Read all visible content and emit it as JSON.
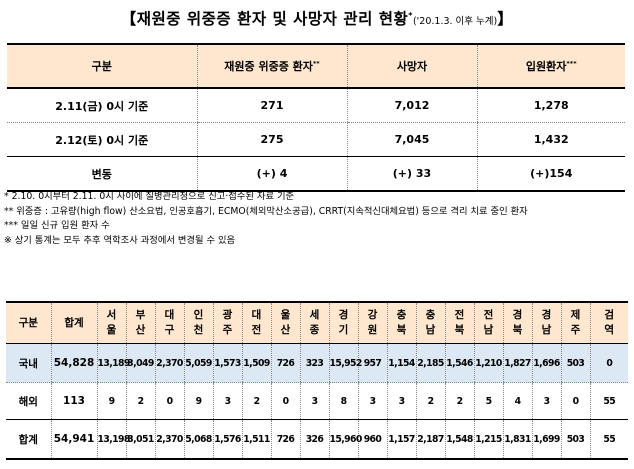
{
  "title": {
    "main": "【재원중 위중증 환자 및 사망자 관리 현황",
    "sup": "*",
    "sub": "('20.1.3. 이후 누계)",
    "close": "】"
  },
  "summary_table": {
    "headers": {
      "category": "구분",
      "critical": "재원중 위중증 환자",
      "critical_sup": "**",
      "deaths": "사망자",
      "hospitalized": "입원환자",
      "hospitalized_sup": "***"
    },
    "rows": [
      {
        "label": "2.11(금) 0시 기준",
        "critical": "271",
        "deaths": "7,012",
        "hospitalized": "1,278"
      },
      {
        "label": "2.12(토) 0시 기준",
        "critical": "275",
        "deaths": "7,045",
        "hospitalized": "1,432"
      },
      {
        "label": "변동",
        "critical": "(+) 4",
        "deaths": "(+) 33",
        "hospitalized": "(+)154"
      }
    ]
  },
  "notes": [
    "* 2.10. 0시부터 2.11. 0시 사이에 질병관리청으로 신고·접수된 자료 기준",
    "** 위중증 : 고유량(high flow) 산소요법, 인공호흡기, ECMO(체외막산소공급), CRRT(지속적신대체요법) 등으로 격리 치료 중인 환자",
    "*** 일일 신규 입원 환자 수",
    "※ 상기 통계는 모두 추후 역학조사 과정에서 변경될 수 있음"
  ],
  "region_table": {
    "headers": [
      "구분",
      "합계",
      "서\n울",
      "부\n산",
      "대\n구",
      "인\n천",
      "광\n주",
      "대\n전",
      "울\n산",
      "세\n종",
      "경\n기",
      "강\n원",
      "충\n북",
      "충\n남",
      "전\n북",
      "전\n남",
      "경\n북",
      "경\n남",
      "제\n주",
      "검\n역"
    ],
    "rows": [
      {
        "label": "국내",
        "values": [
          "54,828",
          "13,189",
          "3,049",
          "2,370",
          "5,059",
          "1,573",
          "1,509",
          "726",
          "323",
          "15,952",
          "957",
          "1,154",
          "2,185",
          "1,546",
          "1,210",
          "1,827",
          "1,696",
          "503",
          "0"
        ]
      },
      {
        "label": "해외",
        "values": [
          "113",
          "9",
          "2",
          "0",
          "9",
          "3",
          "2",
          "0",
          "3",
          "8",
          "3",
          "3",
          "2",
          "2",
          "5",
          "4",
          "3",
          "0",
          "55"
        ]
      },
      {
        "label": "합계",
        "values": [
          "54,941",
          "13,198",
          "3,051",
          "2,370",
          "5,068",
          "1,576",
          "1,511",
          "726",
          "326",
          "15,960",
          "960",
          "1,157",
          "2,187",
          "1,548",
          "1,215",
          "1,831",
          "1,699",
          "503",
          "55"
        ]
      }
    ]
  }
}
